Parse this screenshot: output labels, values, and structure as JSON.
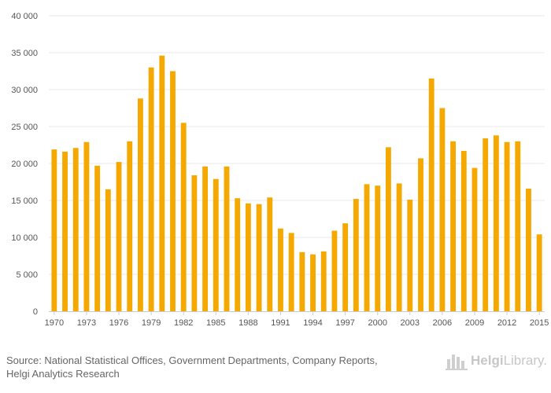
{
  "chart_data": {
    "type": "bar",
    "title": "",
    "xlabel": "",
    "ylabel": "",
    "ylim": [
      0,
      40000
    ],
    "yticks": [
      0,
      5000,
      10000,
      15000,
      20000,
      25000,
      30000,
      35000,
      40000
    ],
    "ytick_labels": [
      "0",
      "5 000",
      "10 000",
      "15 000",
      "20 000",
      "25 000",
      "30 000",
      "35 000",
      "40 000"
    ],
    "xtick_labels": [
      "1970",
      "1973",
      "1976",
      "1979",
      "1982",
      "1985",
      "1988",
      "1991",
      "1994",
      "1997",
      "2000",
      "2003",
      "2006",
      "2009",
      "2012",
      "2015"
    ],
    "categories": [
      "1970",
      "1971",
      "1972",
      "1973",
      "1974",
      "1975",
      "1976",
      "1977",
      "1978",
      "1979",
      "1980",
      "1981",
      "1982",
      "1983",
      "1984",
      "1985",
      "1986",
      "1987",
      "1988",
      "1989",
      "1990",
      "1991",
      "1992",
      "1993",
      "1994",
      "1995",
      "1996",
      "1997",
      "1998",
      "1999",
      "2000",
      "2001",
      "2002",
      "2003",
      "2004",
      "2005",
      "2006",
      "2007",
      "2008",
      "2009",
      "2010",
      "2011",
      "2012",
      "2013",
      "2014",
      "2015"
    ],
    "values": [
      21900,
      21600,
      22100,
      22900,
      19700,
      16500,
      20200,
      23000,
      28800,
      33000,
      34600,
      32500,
      25500,
      18400,
      19600,
      17900,
      19600,
      15300,
      14600,
      14500,
      15400,
      11200,
      10600,
      8000,
      7700,
      8100,
      10900,
      11900,
      15200,
      17200,
      17000,
      22200,
      17300,
      15100,
      20700,
      31500,
      27500,
      23000,
      21700,
      19400,
      23400,
      23800,
      22900,
      23000,
      16600,
      10400
    ],
    "grid": true,
    "legend": "none",
    "colors": {
      "bar": "#f5a800",
      "grid": "#e8e8e8",
      "axis": "#cccccc",
      "tick_text": "#555555"
    }
  },
  "footer": {
    "source_line1": "Source: National Statistical Offices, Government Departments, Company Reports,",
    "source_line2": "Helgi Analytics Research"
  },
  "brand": {
    "name_bold": "Helgi",
    "name_rest": "Library."
  }
}
